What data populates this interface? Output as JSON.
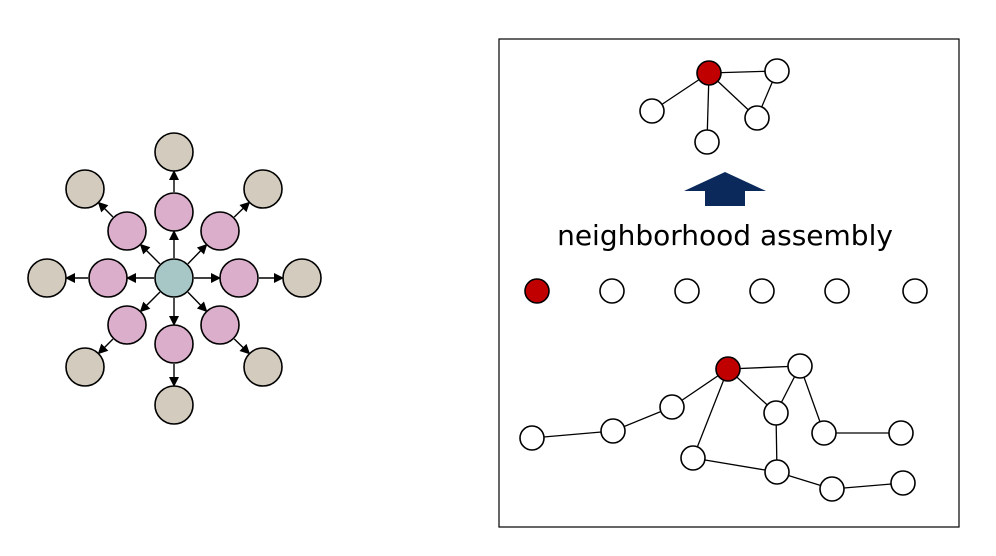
{
  "figure": {
    "left_panel": {
      "colors": {
        "center": "#a6c7c6",
        "inner": "#dbaecb",
        "outer": "#d3cbbd",
        "stroke": "#000000"
      }
    },
    "right_panel": {
      "label": "neighborhood assembly",
      "colors": {
        "highlight": "#c00000",
        "node": "#ffffff",
        "arrow": "#0b2a5b",
        "border": "#000000"
      }
    }
  }
}
